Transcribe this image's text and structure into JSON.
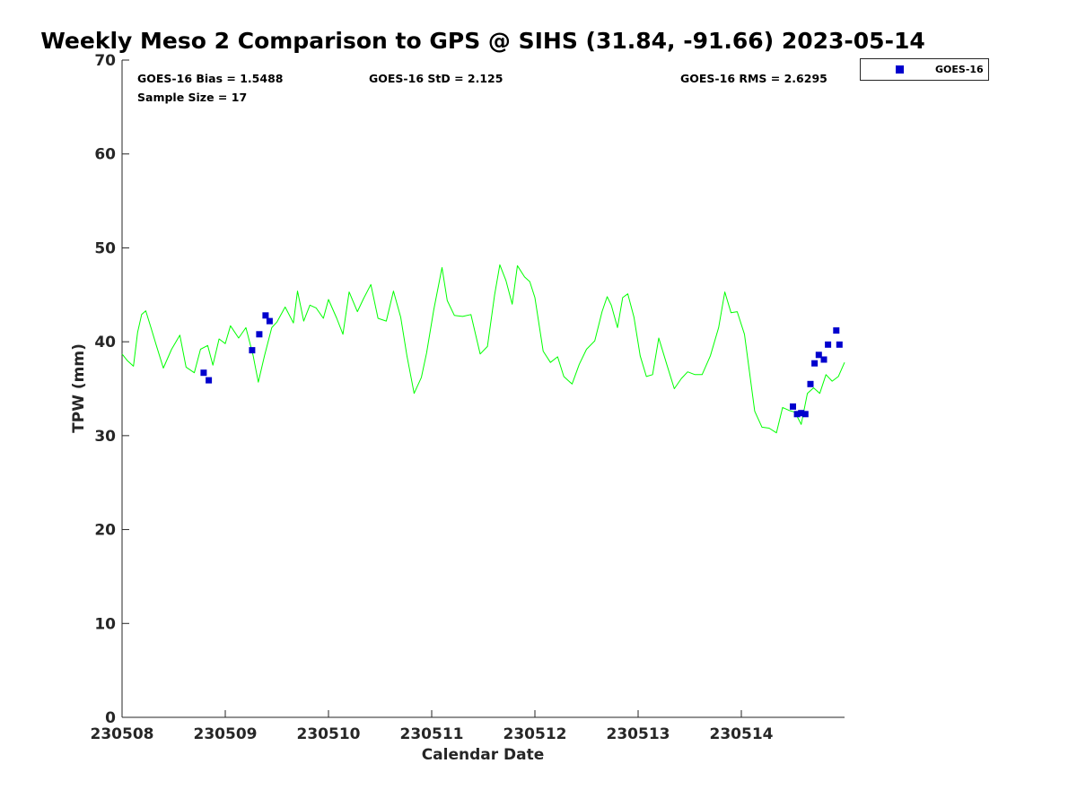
{
  "chart_data": {
    "type": "line",
    "title": "Weekly Meso 2 Comparison to GPS @ SIHS (31.84, -91.66) 2023-05-14",
    "xlabel": "Calendar Date",
    "ylabel": "TPW (mm)",
    "xlim": [
      0,
      7
    ],
    "ylim": [
      0,
      70
    ],
    "x_ticks": [
      0,
      1,
      2,
      3,
      4,
      5,
      6
    ],
    "x_tick_labels": [
      "230508",
      "230509",
      "230510",
      "230511",
      "230512",
      "230513",
      "230514"
    ],
    "y_ticks": [
      0,
      10,
      20,
      30,
      40,
      50,
      60,
      70
    ],
    "y_tick_labels": [
      "0",
      "10",
      "20",
      "30",
      "40",
      "50",
      "60",
      "70"
    ],
    "stats": {
      "bias": "GOES-16 Bias = 1.5488",
      "std": "GOES-16 StD = 2.125",
      "rms": "GOES-16 RMS = 2.6295",
      "sample": "Sample Size = 17"
    },
    "legend": {
      "label": "GOES-16",
      "position": "outside-top-right"
    },
    "series": [
      {
        "name": "GPS",
        "color": "#00ff00",
        "style": "line",
        "points": [
          [
            0.0,
            38.7
          ],
          [
            0.05,
            38.0
          ],
          [
            0.11,
            37.4
          ],
          [
            0.15,
            41.0
          ],
          [
            0.19,
            42.9
          ],
          [
            0.23,
            43.3
          ],
          [
            0.28,
            41.5
          ],
          [
            0.33,
            39.7
          ],
          [
            0.4,
            37.2
          ],
          [
            0.48,
            39.2
          ],
          [
            0.56,
            40.7
          ],
          [
            0.62,
            37.3
          ],
          [
            0.7,
            36.7
          ],
          [
            0.76,
            39.2
          ],
          [
            0.83,
            39.6
          ],
          [
            0.88,
            37.5
          ],
          [
            0.94,
            40.3
          ],
          [
            1.0,
            39.8
          ],
          [
            1.05,
            41.7
          ],
          [
            1.13,
            40.4
          ],
          [
            1.2,
            41.5
          ],
          [
            1.27,
            38.5
          ],
          [
            1.32,
            35.7
          ],
          [
            1.38,
            38.5
          ],
          [
            1.45,
            41.5
          ],
          [
            1.5,
            42.1
          ],
          [
            1.58,
            43.7
          ],
          [
            1.66,
            42.0
          ],
          [
            1.7,
            45.4
          ],
          [
            1.76,
            42.2
          ],
          [
            1.82,
            43.9
          ],
          [
            1.88,
            43.6
          ],
          [
            1.95,
            42.5
          ],
          [
            2.0,
            44.5
          ],
          [
            2.08,
            42.5
          ],
          [
            2.14,
            40.8
          ],
          [
            2.2,
            45.3
          ],
          [
            2.28,
            43.2
          ],
          [
            2.34,
            44.6
          ],
          [
            2.41,
            46.1
          ],
          [
            2.48,
            42.5
          ],
          [
            2.56,
            42.2
          ],
          [
            2.63,
            45.4
          ],
          [
            2.7,
            42.6
          ],
          [
            2.76,
            38.5
          ],
          [
            2.83,
            34.5
          ],
          [
            2.9,
            36.2
          ],
          [
            2.95,
            38.8
          ],
          [
            3.02,
            43.4
          ],
          [
            3.1,
            47.9
          ],
          [
            3.15,
            44.4
          ],
          [
            3.22,
            42.8
          ],
          [
            3.3,
            42.7
          ],
          [
            3.38,
            42.9
          ],
          [
            3.47,
            38.7
          ],
          [
            3.54,
            39.5
          ],
          [
            3.61,
            45.0
          ],
          [
            3.66,
            48.2
          ],
          [
            3.72,
            46.5
          ],
          [
            3.78,
            44.0
          ],
          [
            3.83,
            48.1
          ],
          [
            3.9,
            46.9
          ],
          [
            3.95,
            46.4
          ],
          [
            4.0,
            44.7
          ],
          [
            4.08,
            39.0
          ],
          [
            4.15,
            37.8
          ],
          [
            4.22,
            38.4
          ],
          [
            4.28,
            36.3
          ],
          [
            4.36,
            35.5
          ],
          [
            4.43,
            37.6
          ],
          [
            4.5,
            39.2
          ],
          [
            4.58,
            40.1
          ],
          [
            4.65,
            43.2
          ],
          [
            4.7,
            44.8
          ],
          [
            4.74,
            43.9
          ],
          [
            4.8,
            41.5
          ],
          [
            4.85,
            44.7
          ],
          [
            4.9,
            45.1
          ],
          [
            4.96,
            42.6
          ],
          [
            5.02,
            38.5
          ],
          [
            5.08,
            36.3
          ],
          [
            5.14,
            36.5
          ],
          [
            5.2,
            40.4
          ],
          [
            5.28,
            37.5
          ],
          [
            5.35,
            35.0
          ],
          [
            5.42,
            36.1
          ],
          [
            5.48,
            36.8
          ],
          [
            5.55,
            36.5
          ],
          [
            5.62,
            36.5
          ],
          [
            5.7,
            38.5
          ],
          [
            5.78,
            41.5
          ],
          [
            5.84,
            45.3
          ],
          [
            5.9,
            43.1
          ],
          [
            5.96,
            43.2
          ],
          [
            6.03,
            40.8
          ],
          [
            6.08,
            36.7
          ],
          [
            6.13,
            32.6
          ],
          [
            6.2,
            30.9
          ],
          [
            6.27,
            30.8
          ],
          [
            6.34,
            30.3
          ],
          [
            6.4,
            33.0
          ],
          [
            6.46,
            32.7
          ],
          [
            6.52,
            32.5
          ],
          [
            6.58,
            31.2
          ],
          [
            6.64,
            34.5
          ],
          [
            6.7,
            35.1
          ],
          [
            6.76,
            34.5
          ],
          [
            6.82,
            36.5
          ],
          [
            6.88,
            35.8
          ],
          [
            6.94,
            36.3
          ],
          [
            7.0,
            37.8
          ]
        ]
      },
      {
        "name": "GOES-16",
        "color": "#0000cd",
        "style": "marker",
        "points": [
          [
            0.79,
            36.7
          ],
          [
            0.84,
            35.9
          ],
          [
            1.26,
            39.1
          ],
          [
            1.33,
            40.8
          ],
          [
            1.39,
            42.8
          ],
          [
            1.43,
            42.2
          ],
          [
            6.5,
            33.1
          ],
          [
            6.54,
            32.3
          ],
          [
            6.58,
            32.4
          ],
          [
            6.62,
            32.3
          ],
          [
            6.67,
            35.5
          ],
          [
            6.71,
            37.7
          ],
          [
            6.75,
            38.6
          ],
          [
            6.8,
            38.1
          ],
          [
            6.84,
            39.7
          ],
          [
            6.92,
            41.2
          ],
          [
            6.95,
            39.7
          ]
        ]
      }
    ]
  }
}
